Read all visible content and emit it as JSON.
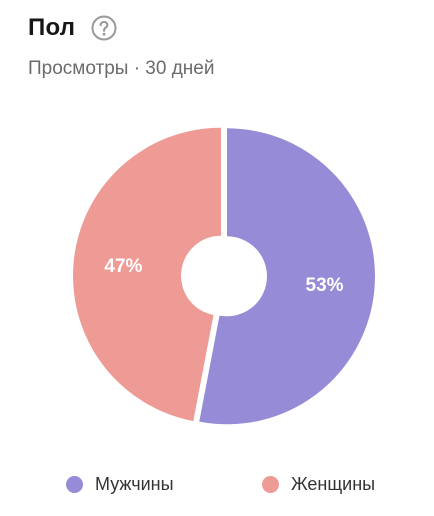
{
  "header": {
    "title": "Пол",
    "help_icon": "question-circle-icon",
    "subtitle": "Просмотры · 30 дней"
  },
  "chart_data": {
    "type": "pie",
    "style": "donut",
    "categories": [
      "Мужчины",
      "Женщины"
    ],
    "values": [
      53,
      47
    ],
    "value_labels": [
      "53%",
      "47%"
    ],
    "colors": [
      "#968BD6",
      "#EE9A95"
    ],
    "legend_position": "bottom"
  }
}
